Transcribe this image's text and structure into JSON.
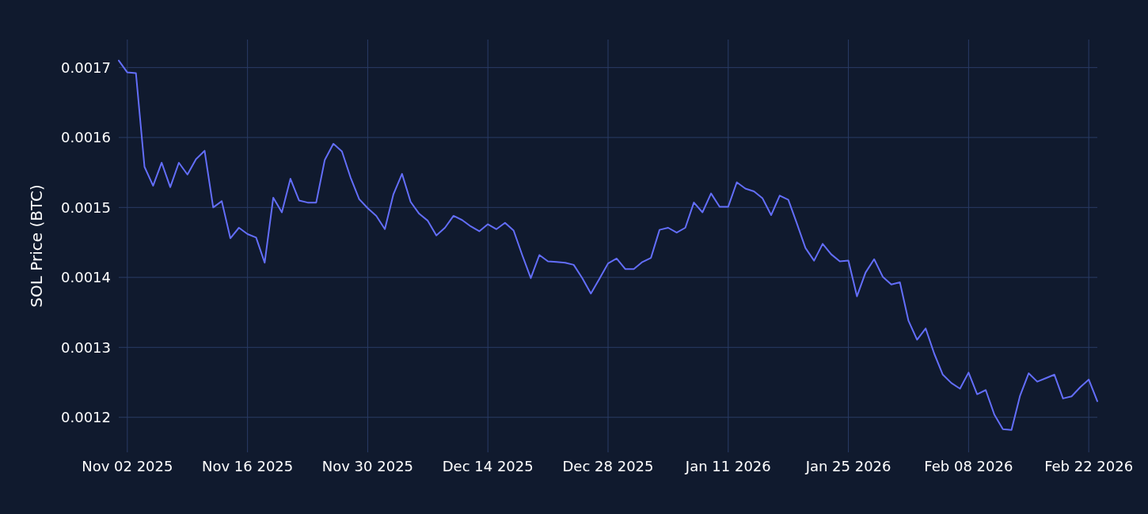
{
  "chart_data": {
    "type": "line",
    "ylabel": "SOL Price (BTC)",
    "x": [
      "2025-11-01",
      "2025-11-02",
      "2025-11-03",
      "2025-11-04",
      "2025-11-05",
      "2025-11-06",
      "2025-11-07",
      "2025-11-08",
      "2025-11-09",
      "2025-11-10",
      "2025-11-11",
      "2025-11-12",
      "2025-11-13",
      "2025-11-14",
      "2025-11-15",
      "2025-11-16",
      "2025-11-17",
      "2025-11-18",
      "2025-11-19",
      "2025-11-20",
      "2025-11-21",
      "2025-11-22",
      "2025-11-23",
      "2025-11-24",
      "2025-11-25",
      "2025-11-26",
      "2025-11-27",
      "2025-11-28",
      "2025-11-29",
      "2025-11-30",
      "2025-12-01",
      "2025-12-02",
      "2025-12-03",
      "2025-12-04",
      "2025-12-05",
      "2025-12-06",
      "2025-12-07",
      "2025-12-08",
      "2025-12-09",
      "2025-12-10",
      "2025-12-11",
      "2025-12-12",
      "2025-12-13",
      "2025-12-14",
      "2025-12-15",
      "2025-12-16",
      "2025-12-17",
      "2025-12-18",
      "2025-12-19",
      "2025-12-20",
      "2025-12-21",
      "2025-12-22",
      "2025-12-23",
      "2025-12-24",
      "2025-12-25",
      "2025-12-26",
      "2025-12-27",
      "2025-12-28",
      "2025-12-29",
      "2025-12-30",
      "2025-12-31",
      "2026-01-01",
      "2026-01-02",
      "2026-01-03",
      "2026-01-04",
      "2026-01-05",
      "2026-01-06",
      "2026-01-07",
      "2026-01-08",
      "2026-01-09",
      "2026-01-10",
      "2026-01-11",
      "2026-01-12",
      "2026-01-13",
      "2026-01-14",
      "2026-01-15",
      "2026-01-16",
      "2026-01-17",
      "2026-01-18",
      "2026-01-19",
      "2026-01-20",
      "2026-01-21",
      "2026-01-22",
      "2026-01-23",
      "2026-01-24",
      "2026-01-25",
      "2026-01-26",
      "2026-01-27",
      "2026-01-28",
      "2026-01-29",
      "2026-01-30",
      "2026-01-31",
      "2026-02-01",
      "2026-02-02",
      "2026-02-03",
      "2026-02-04",
      "2026-02-05",
      "2026-02-06",
      "2026-02-07",
      "2026-02-08",
      "2026-02-09",
      "2026-02-10",
      "2026-02-11",
      "2026-02-12",
      "2026-02-13",
      "2026-02-14",
      "2026-02-15",
      "2026-02-16",
      "2026-02-17",
      "2026-02-18",
      "2026-02-19",
      "2026-02-20",
      "2026-02-21",
      "2026-02-22",
      "2026-02-23"
    ],
    "series": [
      {
        "color": "#636efa",
        "values": [
          0.00171,
          0.001693,
          0.001692,
          0.001558,
          0.001531,
          0.001564,
          0.001529,
          0.001564,
          0.001547,
          0.001569,
          0.001581,
          0.0015,
          0.001509,
          0.001456,
          0.001471,
          0.001462,
          0.001457,
          0.001421,
          0.001514,
          0.001493,
          0.001541,
          0.00151,
          0.001507,
          0.001507,
          0.001568,
          0.001591,
          0.00158,
          0.001543,
          0.001512,
          0.001499,
          0.001488,
          0.001469,
          0.001519,
          0.001548,
          0.001508,
          0.001491,
          0.001481,
          0.00146,
          0.001471,
          0.001488,
          0.001482,
          0.001473,
          0.001466,
          0.001476,
          0.001469,
          0.001478,
          0.001467,
          0.001432,
          0.001399,
          0.001432,
          0.001423,
          0.001422,
          0.001421,
          0.001418,
          0.001399,
          0.001377,
          0.001398,
          0.00142,
          0.001427,
          0.001412,
          0.001412,
          0.001422,
          0.001428,
          0.001468,
          0.001471,
          0.001464,
          0.001471,
          0.001507,
          0.001493,
          0.00152,
          0.001501,
          0.001501,
          0.001536,
          0.001527,
          0.001523,
          0.001513,
          0.001489,
          0.001517,
          0.001511,
          0.001477,
          0.001442,
          0.001424,
          0.001448,
          0.001433,
          0.001423,
          0.001424,
          0.001373,
          0.001407,
          0.001426,
          0.001401,
          0.00139,
          0.001393,
          0.001338,
          0.001311,
          0.001327,
          0.001291,
          0.001261,
          0.001249,
          0.001241,
          0.001264,
          0.001233,
          0.001239,
          0.001204,
          0.001183,
          0.001182,
          0.001231,
          0.001263,
          0.001251,
          0.001256,
          0.001261,
          0.001227,
          0.00123,
          0.001243,
          0.001254,
          0.001223
        ]
      }
    ],
    "xlim": [
      "2025-11-01",
      "2026-02-23"
    ],
    "xticks": [
      {
        "value": "2025-11-02",
        "label": "Nov 02 2025"
      },
      {
        "value": "2025-11-16",
        "label": "Nov 16 2025"
      },
      {
        "value": "2025-11-30",
        "label": "Nov 30 2025"
      },
      {
        "value": "2025-12-14",
        "label": "Dec 14 2025"
      },
      {
        "value": "2025-12-28",
        "label": "Dec 28 2025"
      },
      {
        "value": "2026-01-11",
        "label": "Jan 11 2026"
      },
      {
        "value": "2026-01-25",
        "label": "Jan 25 2026"
      },
      {
        "value": "2026-02-08",
        "label": "Feb 08 2026"
      },
      {
        "value": "2026-02-22",
        "label": "Feb 22 2026"
      }
    ],
    "ylim": [
      0.00115,
      0.00174
    ],
    "yticks": [
      0.0012,
      0.0013,
      0.0014,
      0.0015,
      0.0016,
      0.0017
    ],
    "grid": true,
    "line_style": "solid"
  }
}
